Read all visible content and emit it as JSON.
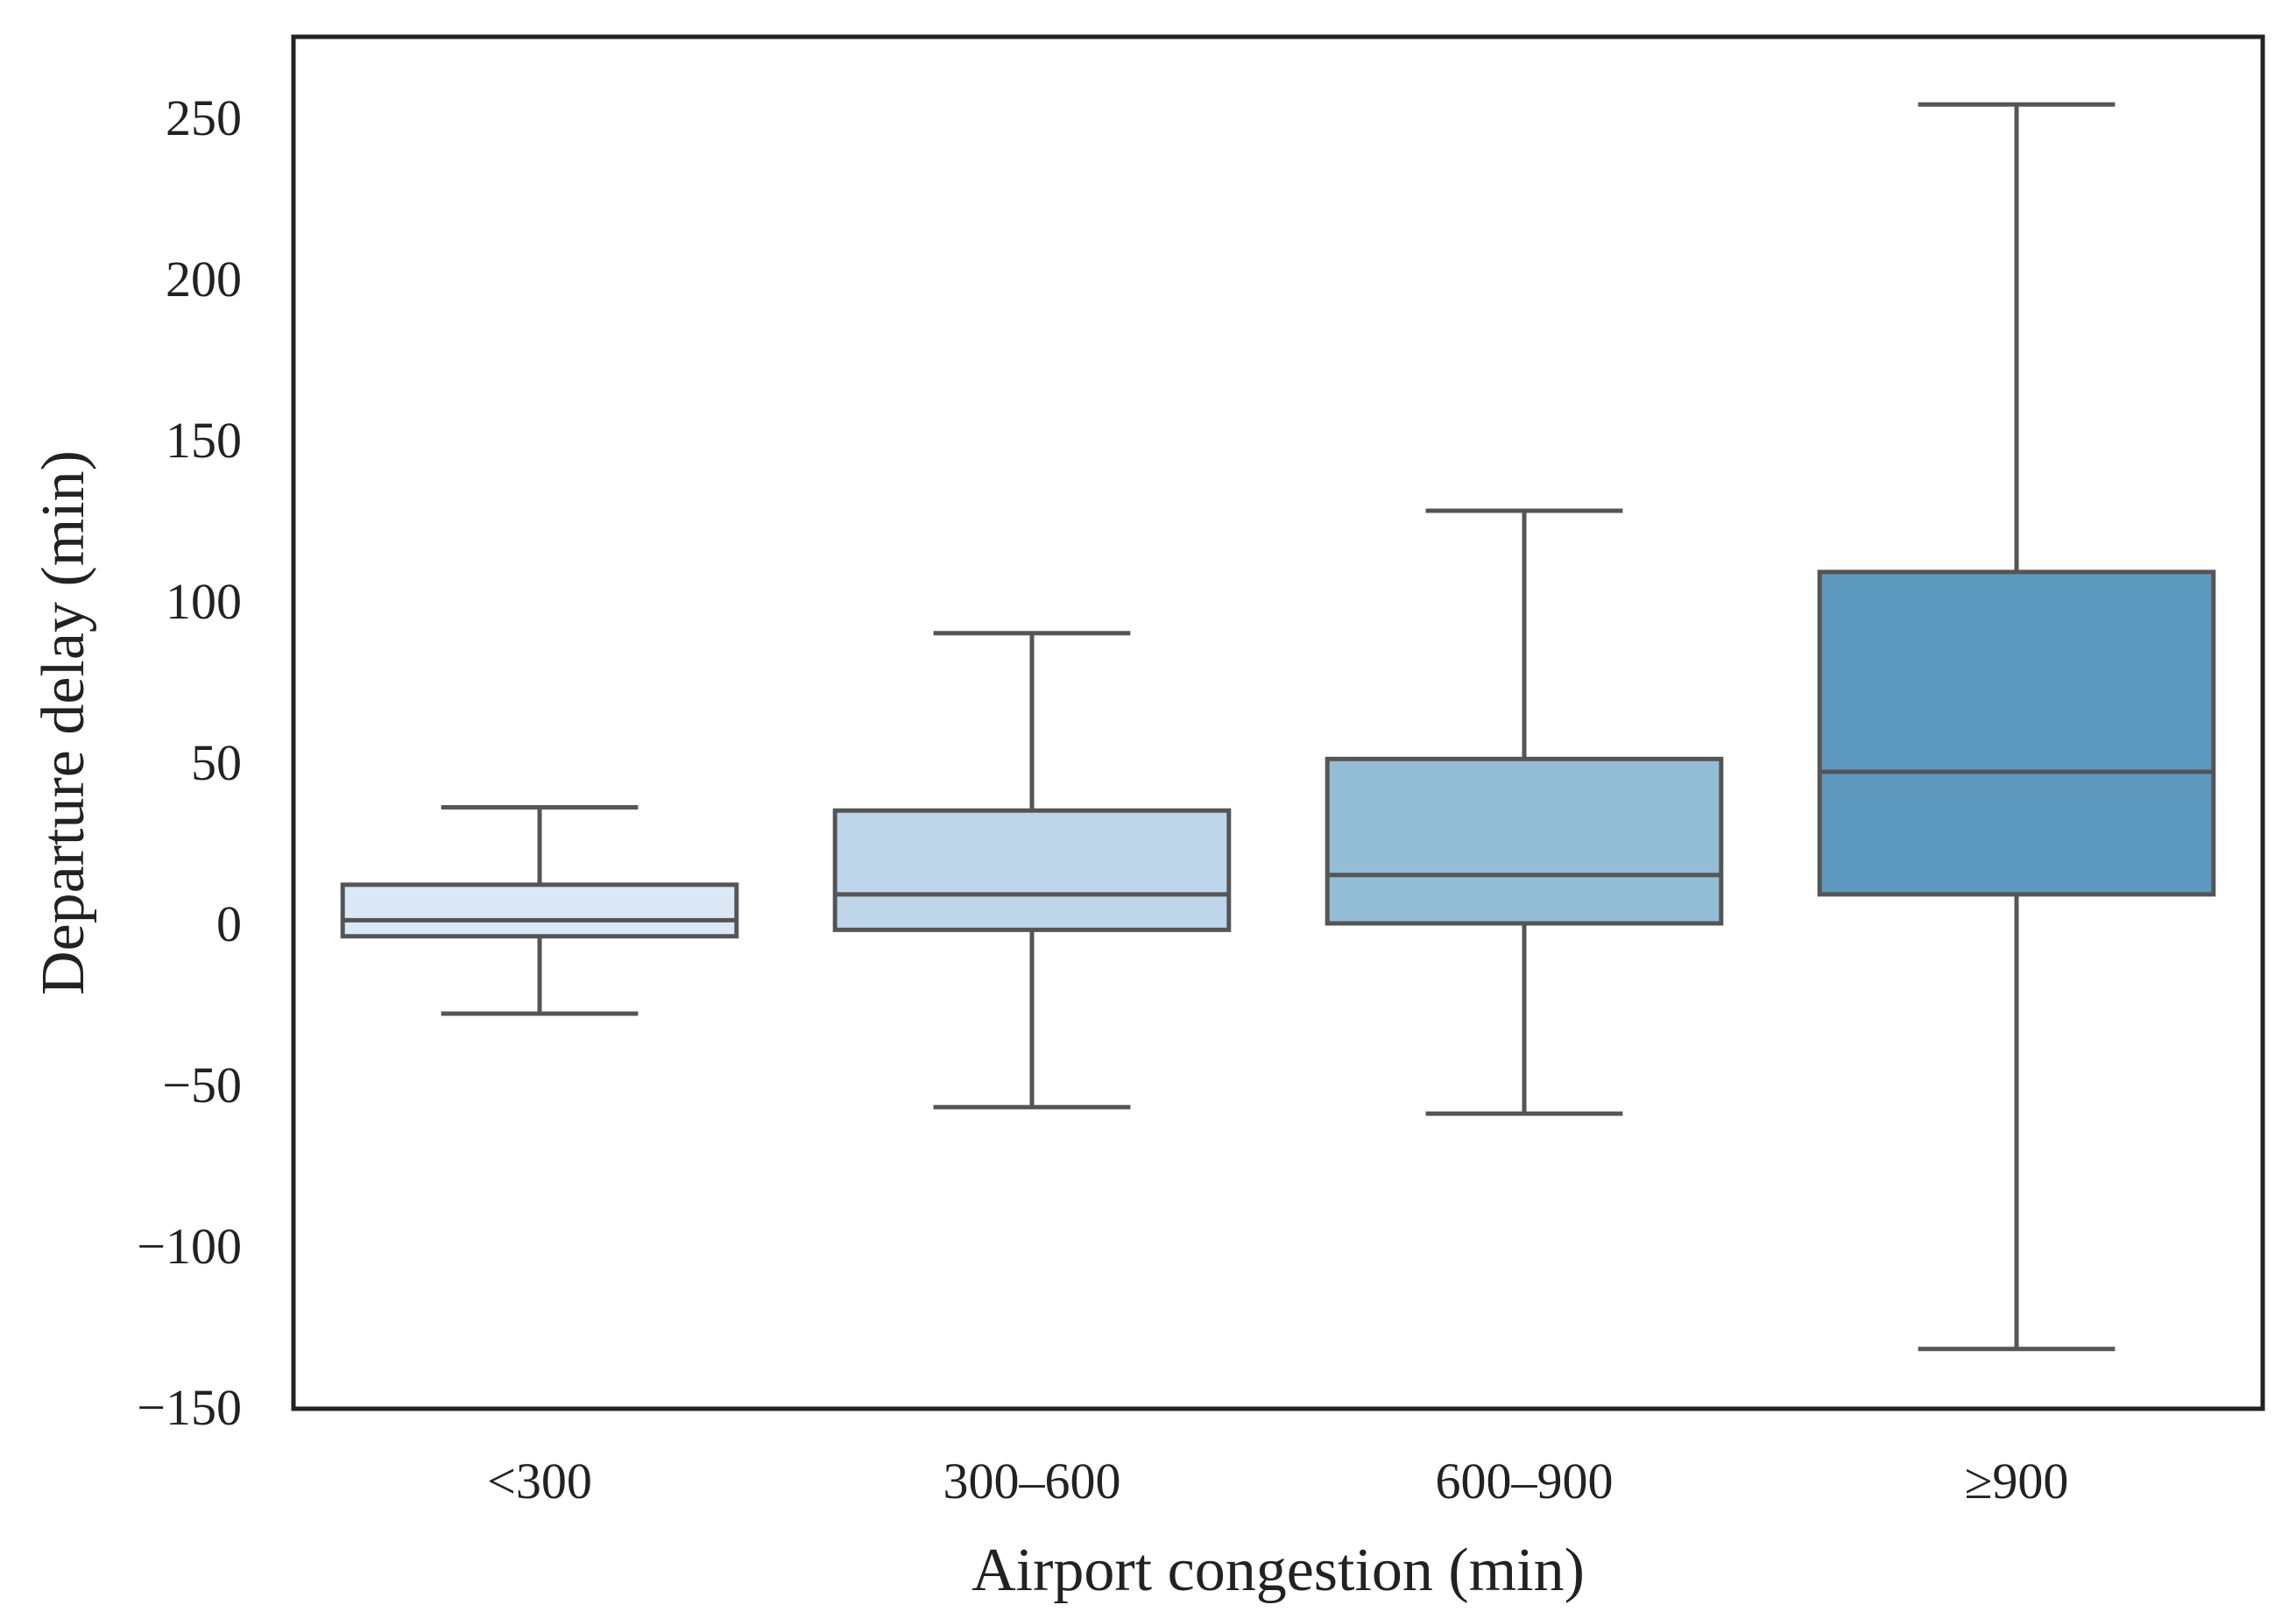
{
  "chart_data": {
    "type": "box",
    "title": "",
    "xlabel": "Airport congestion (min)",
    "ylabel": "Departure delay (min)",
    "ylim": [
      -150,
      275
    ],
    "yticks": [
      -150,
      -100,
      -50,
      0,
      50,
      100,
      150,
      200,
      250
    ],
    "ytick_labels": [
      "−150",
      "−100",
      "−50",
      "0",
      "50",
      "100",
      "150",
      "200",
      "250"
    ],
    "grid": false,
    "categories": [
      "<300",
      "300–600",
      "600–900",
      "≥900"
    ],
    "boxes": [
      {
        "category": "<300",
        "whisker_low": -28,
        "q1": -4,
        "median": 1,
        "q3": 12,
        "whisker_high": 36,
        "color": "#dbe9f6"
      },
      {
        "category": "300–600",
        "whisker_low": -57,
        "q1": -2,
        "median": 9,
        "q3": 35,
        "whisker_high": 90,
        "color": "#bfd6ea"
      },
      {
        "category": "600–900",
        "whisker_low": -59,
        "q1": 0,
        "median": 15,
        "q3": 51,
        "whisker_high": 128,
        "color": "#93bdd5"
      },
      {
        "category": "≥900",
        "whisker_low": -132,
        "q1": 9,
        "median": 47,
        "q3": 109,
        "whisker_high": 254,
        "color": "#5e99bf"
      }
    ],
    "line_color": "#555555",
    "frame_color": "#222222"
  }
}
